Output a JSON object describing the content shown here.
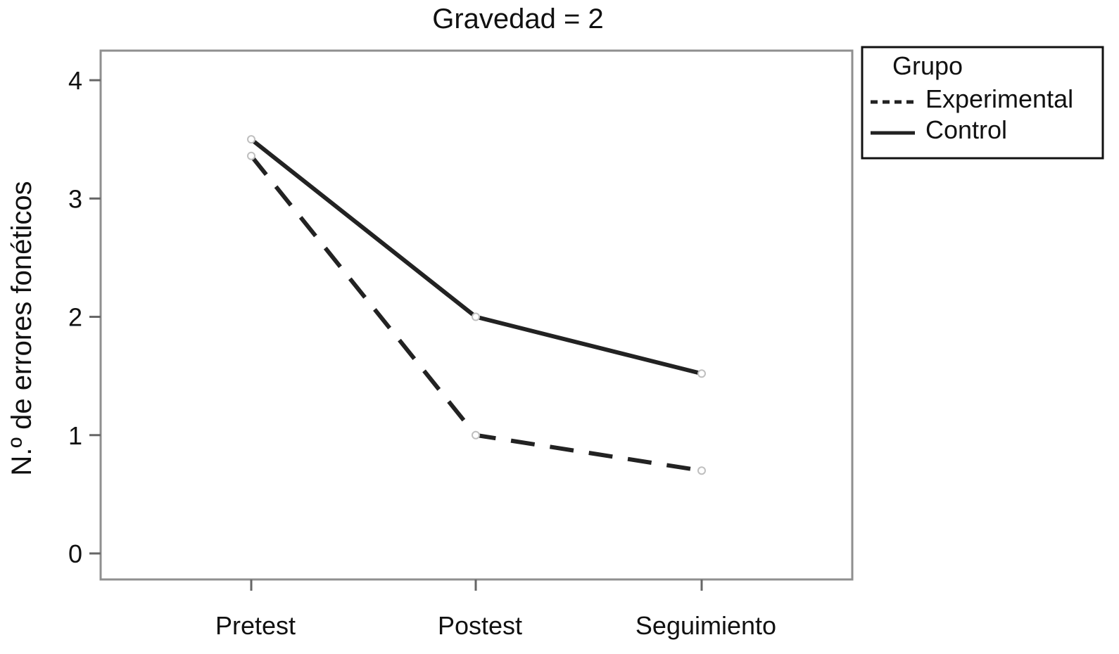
{
  "chart_data": {
    "type": "line",
    "title": "Gravedad = 2",
    "xlabel": "",
    "ylabel": "N.º de errores fonéticos",
    "categories": [
      "Pretest",
      "Postest",
      "Seguimiento"
    ],
    "ylim": [
      -0.22,
      4.25
    ],
    "yticks": [
      0,
      1,
      2,
      3,
      4
    ],
    "grid": false,
    "legend": {
      "title": "Grupo",
      "placement": "right-top-outside"
    },
    "series": [
      {
        "name": "Experimental",
        "values": [
          3.36,
          1.0,
          0.7
        ],
        "style": "dashed",
        "color": "#222222"
      },
      {
        "name": "Control",
        "values": [
          3.5,
          2.0,
          1.52
        ],
        "style": "solid",
        "color": "#222222"
      }
    ]
  }
}
